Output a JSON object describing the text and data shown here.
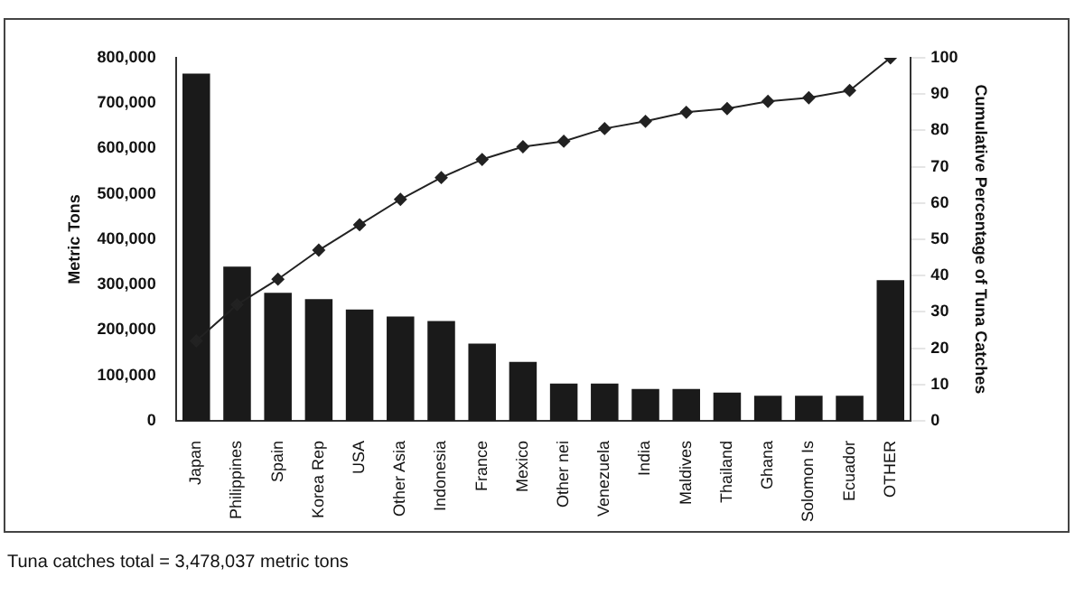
{
  "chart_data": {
    "type": "bar",
    "ylabel": "Metric Tons",
    "y2label": "Cumulative Percentage of Tuna Catches",
    "categories": [
      "Japan",
      "Philippines",
      "Spain",
      "Korea Rep",
      "USA",
      "Other Asia",
      "Indonesia",
      "France",
      "Mexico",
      "Other nei",
      "Venezuela",
      "India",
      "Maldives",
      "Thailand",
      "Ghana",
      "Solomon Is",
      "Ecuador",
      "OTHER"
    ],
    "series": [
      {
        "color": "#1a1a1a",
        "values": [
          765000,
          340000,
          282000,
          268000,
          245000,
          230000,
          220000,
          170000,
          130000,
          82000,
          82000,
          70000,
          70000,
          62000,
          55000,
          55000,
          55000,
          310000
        ]
      },
      {
        "type": "line",
        "axis": "y2",
        "color": "#222222",
        "marker": "diamond",
        "values": [
          22,
          32,
          39,
          47,
          54,
          61,
          67,
          72,
          75.5,
          77,
          80.5,
          82.5,
          85,
          86,
          88,
          89,
          91,
          100
        ]
      }
    ],
    "ylim": [
      0,
      800000
    ],
    "yticks": [
      0,
      {
        "value": 100000,
        "label": "100,000"
      },
      {
        "value": 200000,
        "label": "200,000"
      },
      {
        "value": 300000,
        "label": "300,000"
      },
      {
        "value": 400000,
        "label": "400,000"
      },
      {
        "value": 500000,
        "label": "500,000"
      },
      {
        "value": 600000,
        "label": "600,000"
      },
      {
        "value": 700000,
        "label": "700,000"
      },
      {
        "value": 800000,
        "label": "800,000"
      }
    ],
    "y2lim": [
      0,
      100
    ],
    "y2ticks": [
      0,
      10,
      20,
      30,
      40,
      50,
      60,
      70,
      80,
      90,
      100
    ],
    "grid": false,
    "legend": false,
    "annotations": [
      "Tuna catches total = 3,478,037 metric tons"
    ]
  }
}
